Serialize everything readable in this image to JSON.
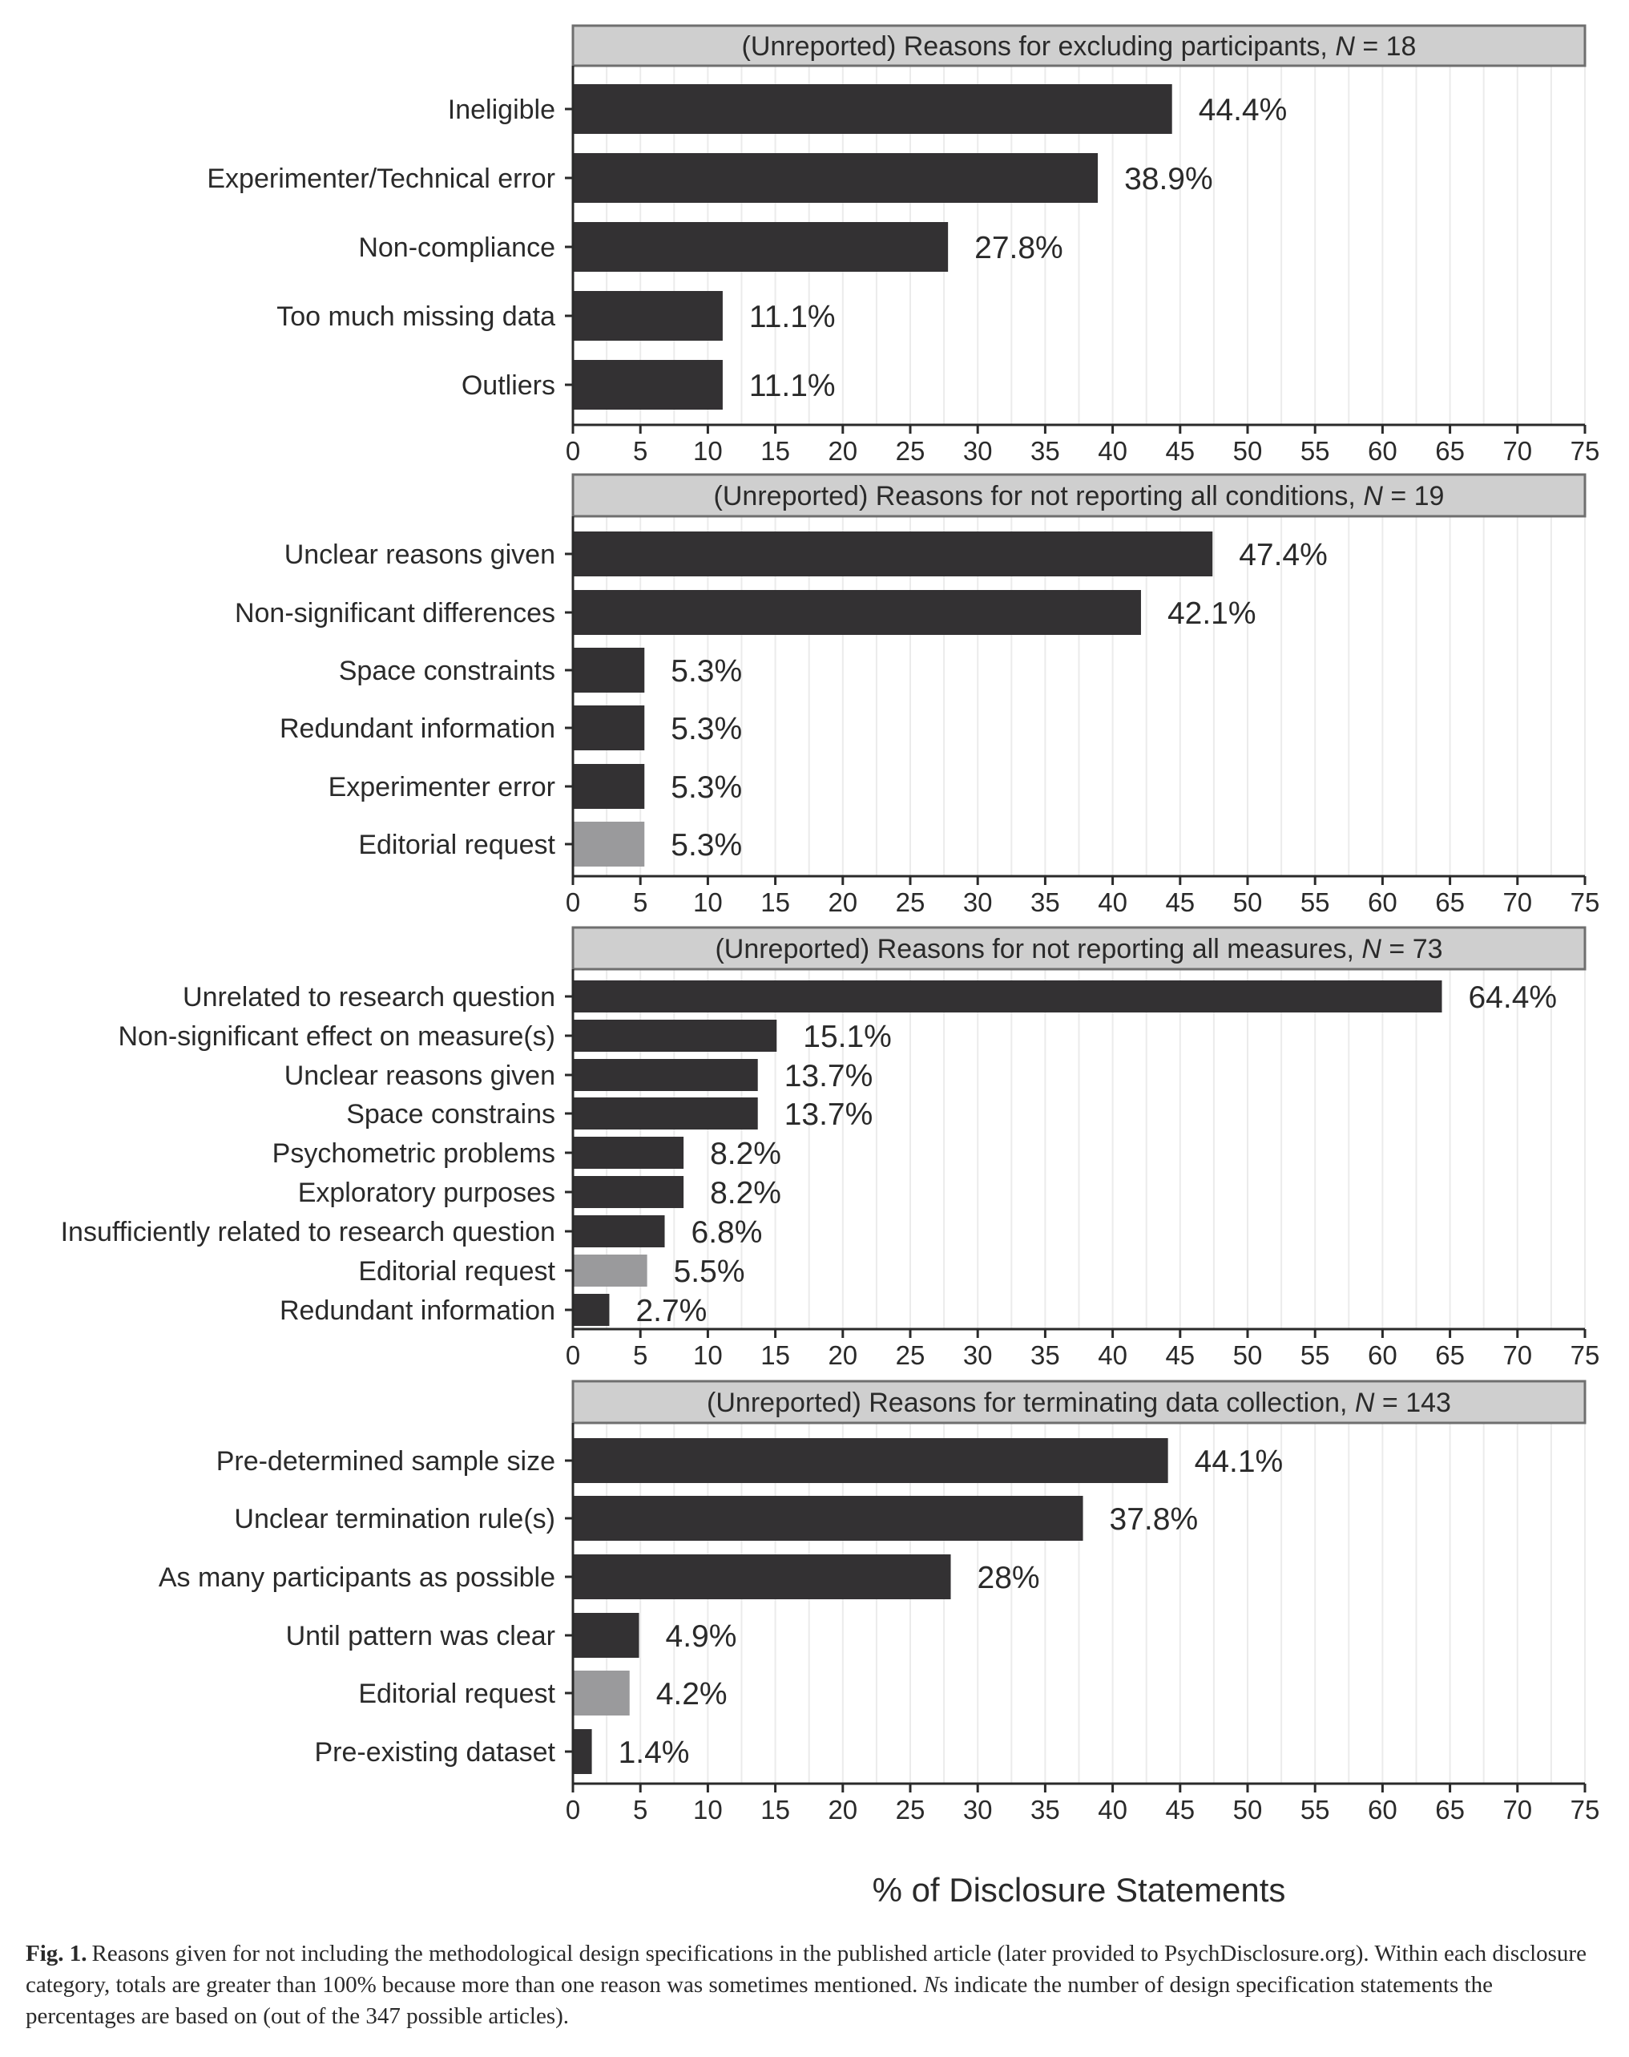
{
  "chart_data": [
    {
      "type": "bar",
      "orientation": "horizontal",
      "strip": {
        "text": "(Unreported) Reasons for excluding participants, ",
        "n_symbol": "N",
        "n_text": " = 18"
      },
      "categories": [
        "Ineligible",
        "Experimenter/Technical error",
        "Non-compliance",
        "Too much missing data",
        "Outliers"
      ],
      "values": [
        44.4,
        38.9,
        27.8,
        11.1,
        11.1
      ],
      "value_labels": [
        "44.4%",
        "38.9%",
        "27.8%",
        "11.1%",
        "11.1%"
      ],
      "highlight": [
        false,
        false,
        false,
        false,
        false
      ],
      "xlim": [
        0,
        75
      ]
    },
    {
      "type": "bar",
      "orientation": "horizontal",
      "strip": {
        "text": "(Unreported) Reasons for not reporting all conditions, ",
        "n_symbol": "N",
        "n_text": " = 19"
      },
      "categories": [
        "Unclear reasons given",
        "Non-significant differences",
        "Space constraints",
        "Redundant information",
        "Experimenter error",
        "Editorial request"
      ],
      "values": [
        47.4,
        42.1,
        5.3,
        5.3,
        5.3,
        5.3
      ],
      "value_labels": [
        "47.4%",
        "42.1%",
        "5.3%",
        "5.3%",
        "5.3%",
        "5.3%"
      ],
      "highlight": [
        false,
        false,
        false,
        false,
        false,
        true
      ],
      "xlim": [
        0,
        75
      ]
    },
    {
      "type": "bar",
      "orientation": "horizontal",
      "strip": {
        "text": "(Unreported) Reasons for not reporting all measures, ",
        "n_symbol": "N",
        "n_text": " = 73"
      },
      "categories": [
        "Unrelated to research question",
        "Non-significant effect on measure(s)",
        "Unclear reasons given",
        "Space constrains",
        "Psychometric problems",
        "Exploratory purposes",
        "Insufficiently related to research question",
        "Editorial request",
        "Redundant information"
      ],
      "values": [
        64.4,
        15.1,
        13.7,
        13.7,
        8.2,
        8.2,
        6.8,
        5.5,
        2.7
      ],
      "value_labels": [
        "64.4%",
        "15.1%",
        "13.7%",
        "13.7%",
        "8.2%",
        "8.2%",
        "6.8%",
        "5.5%",
        "2.7%"
      ],
      "highlight": [
        false,
        false,
        false,
        false,
        false,
        false,
        false,
        true,
        false
      ],
      "xlim": [
        0,
        75
      ]
    },
    {
      "type": "bar",
      "orientation": "horizontal",
      "strip": {
        "text": "(Unreported) Reasons for terminating data collection, ",
        "n_symbol": "N",
        "n_text": " = 143"
      },
      "categories": [
        "Pre-determined sample size",
        "Unclear termination rule(s)",
        "As many participants as possible",
        "Until pattern was clear",
        "Editorial request",
        "Pre-existing dataset"
      ],
      "values": [
        44.1,
        37.8,
        28,
        4.9,
        4.2,
        1.4
      ],
      "value_labels": [
        "44.1%",
        "37.8%",
        "28%",
        "4.9%",
        "4.2%",
        "1.4%"
      ],
      "highlight": [
        false,
        false,
        false,
        false,
        true,
        false
      ],
      "xlim": [
        0,
        75
      ]
    }
  ],
  "x_ticks": [
    0,
    5,
    10,
    15,
    20,
    25,
    30,
    35,
    40,
    45,
    50,
    55,
    60,
    65,
    70,
    75
  ],
  "xlabel": "% of Disclosure Statements",
  "colors": {
    "bar": "#333133",
    "highlight_bar": "#9a9a9c",
    "strip_fill": "#cfcfcf",
    "strip_border": "#6f6f6f",
    "grid": "#ebebeb",
    "axis": "#2a2a2a"
  },
  "caption": {
    "label": "Fig. 1.",
    "text_part1": "Reasons given for not including the methodological design specifications in the published article (later provided to PsychDisclosure.org). Within each disclosure category, totals are greater than 100% because more than one reason was sometimes mentioned. ",
    "italic_ns": "N",
    "text_part2": "s indicate the number of design specification statements the percentages are based on (out of the 347 possible articles)."
  }
}
